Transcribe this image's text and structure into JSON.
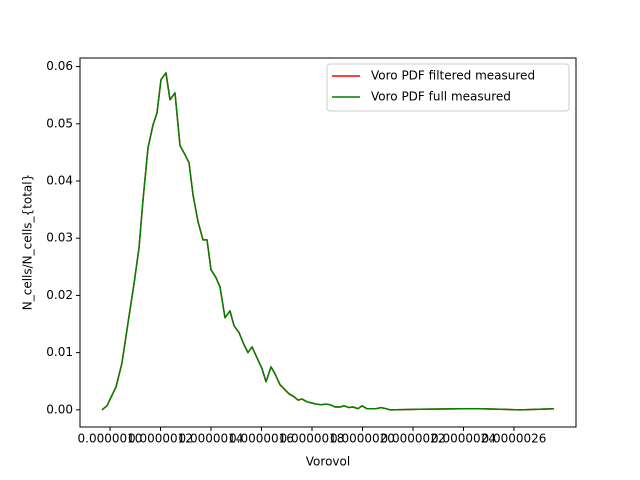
{
  "chart_data": {
    "type": "line",
    "x_label": "Vorovol",
    "y_label": "N_cells/N_cells_{total}",
    "x": [
      9.683e-07,
      9.881e-07,
      1.0238e-06,
      1.0475e-06,
      1.0713e-06,
      1.095e-06,
      1.1149e-06,
      1.1307e-06,
      1.1505e-06,
      1.1703e-06,
      1.1861e-06,
      1.202e-06,
      1.2218e-06,
      1.2376e-06,
      1.2574e-06,
      1.2772e-06,
      1.297e-06,
      1.3129e-06,
      1.3287e-06,
      1.3485e-06,
      1.3683e-06,
      1.3842e-06,
      1.4e-06,
      1.4198e-06,
      1.4356e-06,
      1.4554e-06,
      1.4752e-06,
      1.4911e-06,
      1.5109e-06,
      1.5307e-06,
      1.5465e-06,
      1.5624e-06,
      1.5822e-06,
      1.602e-06,
      1.6178e-06,
      1.6376e-06,
      1.6535e-06,
      1.6733e-06,
      1.6931e-06,
      1.7089e-06,
      1.7287e-06,
      1.7446e-06,
      1.7604e-06,
      1.7802e-06,
      1.8e-06,
      1.8158e-06,
      1.8356e-06,
      1.8554e-06,
      1.8713e-06,
      1.8911e-06,
      1.9109e-06,
      1.9267e-06,
      1.9465e-06,
      1.9624e-06,
      1.9822e-06,
      1.998e-06,
      2.0178e-06,
      2.0376e-06,
      2.0535e-06,
      2.0733e-06,
      2.0931e-06,
      2.1089e-06,
      2.2277e-06,
      2.3901e-06,
      2.4693e-06,
      2.6238e-06,
      2.7584e-06
    ],
    "series": [
      {
        "name": "Voro PDF filtered measured",
        "color": "#ff0000",
        "values": [
          0,
          0.0007,
          0.004,
          0.0082,
          0.0152,
          0.022,
          0.0283,
          0.0367,
          0.0458,
          0.0498,
          0.0519,
          0.0577,
          0.0589,
          0.0542,
          0.0554,
          0.0462,
          0.0446,
          0.0432,
          0.0376,
          0.0329,
          0.0297,
          0.0297,
          0.0245,
          0.0231,
          0.0215,
          0.0161,
          0.0173,
          0.0147,
          0.0135,
          0.0114,
          0.01,
          0.011,
          0.0091,
          0.0072,
          0.0049,
          0.0075,
          0.0063,
          0.0044,
          0.0035,
          0.0028,
          0.0023,
          0.0017,
          0.0019,
          0.0014,
          0.0012,
          0.001,
          0.0009,
          0.001,
          0.0009,
          0.0005,
          0.0005,
          0.0007,
          0.0004,
          0.0005,
          0.0002,
          0.0007,
          0.0002,
          0.0002,
          0.0002,
          0.0004,
          0.0002,
          0,
          0.0001,
          0.0002,
          0.0002,
          0,
          0.0002
        ]
      },
      {
        "name": "Voro PDF full measured",
        "color": "#008000",
        "values": [
          0,
          0.0007,
          0.004,
          0.0082,
          0.0152,
          0.022,
          0.0283,
          0.0367,
          0.0458,
          0.0498,
          0.0519,
          0.0577,
          0.0589,
          0.0542,
          0.0554,
          0.0462,
          0.0446,
          0.0432,
          0.0376,
          0.0329,
          0.0297,
          0.0297,
          0.0245,
          0.0231,
          0.0215,
          0.0161,
          0.0173,
          0.0147,
          0.0135,
          0.0114,
          0.01,
          0.011,
          0.0091,
          0.0072,
          0.0049,
          0.0075,
          0.0063,
          0.0044,
          0.0035,
          0.0028,
          0.0023,
          0.0017,
          0.0019,
          0.0014,
          0.0012,
          0.001,
          0.0009,
          0.001,
          0.0009,
          0.0005,
          0.0005,
          0.0007,
          0.0004,
          0.0005,
          0.0002,
          0.0007,
          0.0002,
          0.0002,
          0.0002,
          0.0004,
          0.0002,
          0,
          0.0001,
          0.0002,
          0.0002,
          0,
          0.0002
        ]
      }
    ],
    "xlim": [
      8.812e-07,
      2.8455e-06
    ],
    "ylim": [
      -0.003,
      0.0615
    ],
    "xticks": [
      {
        "value": 1e-06,
        "label": "0.0000010"
      },
      {
        "value": 1.2e-06,
        "label": "0.0000012"
      },
      {
        "value": 1.4e-06,
        "label": "0.0000014"
      },
      {
        "value": 1.6e-06,
        "label": "0.0000016"
      },
      {
        "value": 1.8e-06,
        "label": "0.0000018"
      },
      {
        "value": 2e-06,
        "label": "0.0000020"
      },
      {
        "value": 2.2e-06,
        "label": "0.0000022"
      },
      {
        "value": 2.4e-06,
        "label": "0.0000024"
      },
      {
        "value": 2.6e-06,
        "label": "0.0000026"
      }
    ],
    "yticks": [
      {
        "value": 0,
        "label": "0.00"
      },
      {
        "value": 0.01,
        "label": "0.01"
      },
      {
        "value": 0.02,
        "label": "0.02"
      },
      {
        "value": 0.03,
        "label": "0.03"
      },
      {
        "value": 0.04,
        "label": "0.04"
      },
      {
        "value": 0.05,
        "label": "0.05"
      },
      {
        "value": 0.06,
        "label": "0.06"
      }
    ],
    "legend": "upper right",
    "grid": false
  }
}
